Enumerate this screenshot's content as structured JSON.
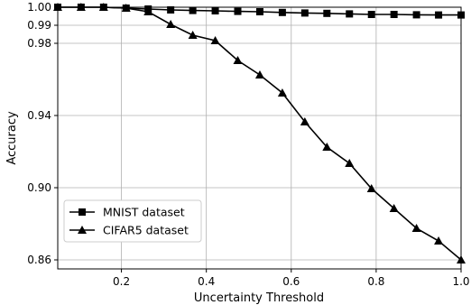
{
  "chart_data": {
    "type": "line",
    "xlabel": "Uncertainty Threshold",
    "ylabel": "Accuracy",
    "xlim": [
      0.05,
      1.0
    ],
    "ylim": [
      0.855,
      1.0
    ],
    "xticks": [
      0.2,
      0.4,
      0.6,
      0.8,
      1.0
    ],
    "xtick_labels": [
      "0.2",
      "0.4",
      "0.6",
      "0.8",
      "1.0"
    ],
    "yticks": [
      0.86,
      0.9,
      0.94,
      0.98,
      0.99,
      1.0
    ],
    "ytick_labels": [
      "0.86",
      "0.90",
      "0.94",
      "0.98",
      "0.99",
      "1.00"
    ],
    "grid": true,
    "legend_position": "lower-left",
    "series": [
      {
        "name": "MNIST dataset",
        "marker": "square",
        "color": "#000000",
        "x": [
          0.05,
          0.105,
          0.158,
          0.211,
          0.263,
          0.316,
          0.368,
          0.421,
          0.474,
          0.526,
          0.579,
          0.632,
          0.684,
          0.737,
          0.789,
          0.842,
          0.895,
          0.947,
          1.0
        ],
        "y": [
          1.0,
          1.0,
          1.0,
          0.9995,
          0.999,
          0.9985,
          0.9982,
          0.998,
          0.9977,
          0.9975,
          0.9971,
          0.9968,
          0.9966,
          0.9963,
          0.996,
          0.996,
          0.9958,
          0.9957,
          0.9957
        ]
      },
      {
        "name": "CIFAR5 dataset",
        "marker": "triangle",
        "color": "#000000",
        "x": [
          0.05,
          0.105,
          0.158,
          0.211,
          0.263,
          0.316,
          0.368,
          0.421,
          0.474,
          0.526,
          0.579,
          0.632,
          0.684,
          0.737,
          0.789,
          0.842,
          0.895,
          0.947,
          1.0
        ],
        "y": [
          1.0,
          1.0,
          1.0,
          0.9995,
          0.9975,
          0.9905,
          0.9845,
          0.9815,
          0.9705,
          0.9625,
          0.9525,
          0.9365,
          0.9225,
          0.9135,
          0.8995,
          0.8885,
          0.8775,
          0.8705,
          0.86
        ]
      }
    ]
  }
}
